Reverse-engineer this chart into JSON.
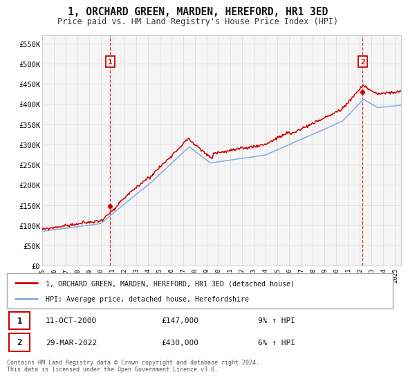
{
  "title": "1, ORCHARD GREEN, MARDEN, HEREFORD, HR1 3ED",
  "subtitle": "Price paid vs. HM Land Registry's House Price Index (HPI)",
  "background_color": "#ffffff",
  "grid_color": "#dddddd",
  "price_line_color": "#cc0000",
  "hpi_line_color": "#88aadd",
  "ylim": [
    0,
    570000
  ],
  "yticks": [
    0,
    50000,
    100000,
    150000,
    200000,
    250000,
    300000,
    350000,
    400000,
    450000,
    500000,
    550000
  ],
  "ytick_labels": [
    "£0",
    "£50K",
    "£100K",
    "£150K",
    "£200K",
    "£250K",
    "£300K",
    "£350K",
    "£400K",
    "£450K",
    "£500K",
    "£550K"
  ],
  "xmin": 1995.0,
  "xmax": 2025.5,
  "marker1_x": 2000.78,
  "marker1_y": 147000,
  "marker1_label": "1",
  "marker1_date": "11-OCT-2000",
  "marker1_price": "£147,000",
  "marker1_hpi": "9% ↑ HPI",
  "marker2_x": 2022.23,
  "marker2_y": 430000,
  "marker2_label": "2",
  "marker2_date": "29-MAR-2022",
  "marker2_price": "£430,000",
  "marker2_hpi": "6% ↑ HPI",
  "legend_label1": "1, ORCHARD GREEN, MARDEN, HEREFORD, HR1 3ED (detached house)",
  "legend_label2": "HPI: Average price, detached house, Herefordshire",
  "footer": "Contains HM Land Registry data © Crown copyright and database right 2024.\nThis data is licensed under the Open Government Licence v3.0.",
  "xtick_years": [
    1995,
    1996,
    1997,
    1998,
    1999,
    2000,
    2001,
    2002,
    2003,
    2004,
    2005,
    2006,
    2007,
    2008,
    2009,
    2010,
    2011,
    2012,
    2013,
    2014,
    2015,
    2016,
    2017,
    2018,
    2019,
    2020,
    2021,
    2022,
    2023,
    2024,
    2025
  ]
}
